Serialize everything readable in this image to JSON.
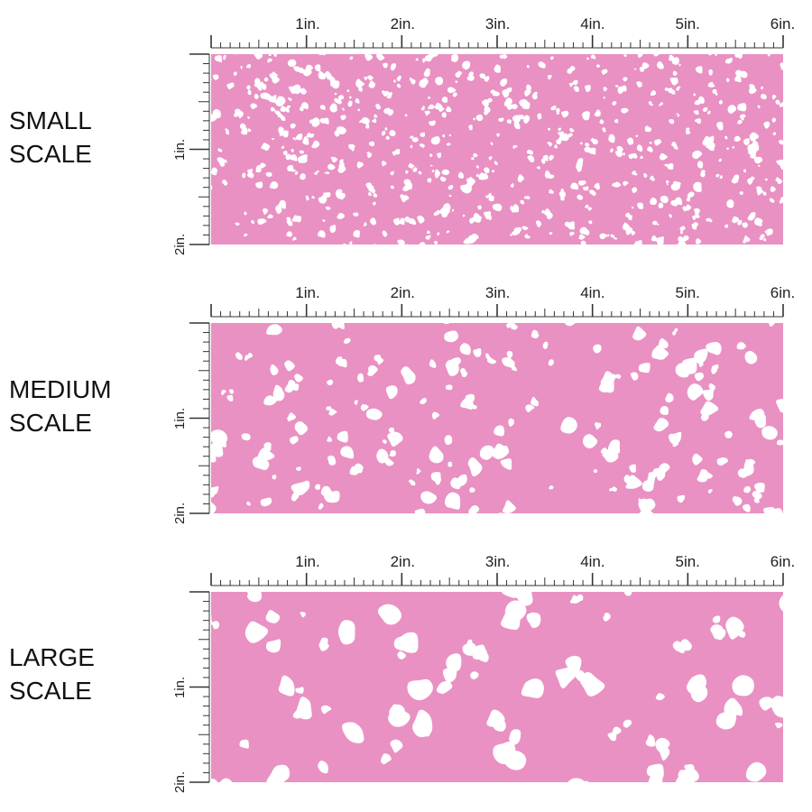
{
  "colors": {
    "fabric_background": "#e991c3",
    "blob": "#ffffff",
    "ruler": "#333333"
  },
  "ruler": {
    "horizontal_labels": [
      "1in.",
      "2in.",
      "3in.",
      "4in.",
      "5in.",
      "6in."
    ],
    "vertical_labels": [
      "1in.",
      "2in."
    ]
  },
  "panels": [
    {
      "id": "small",
      "label_line1": "SMALL",
      "label_line2": "SCALE",
      "blob_scale": 0.45
    },
    {
      "id": "medium",
      "label_line1": "MEDIUM",
      "label_line2": "SCALE",
      "blob_scale": 0.85
    },
    {
      "id": "large",
      "label_line1": "LARGE",
      "label_line2": "SCALE",
      "blob_scale": 1.3
    }
  ]
}
